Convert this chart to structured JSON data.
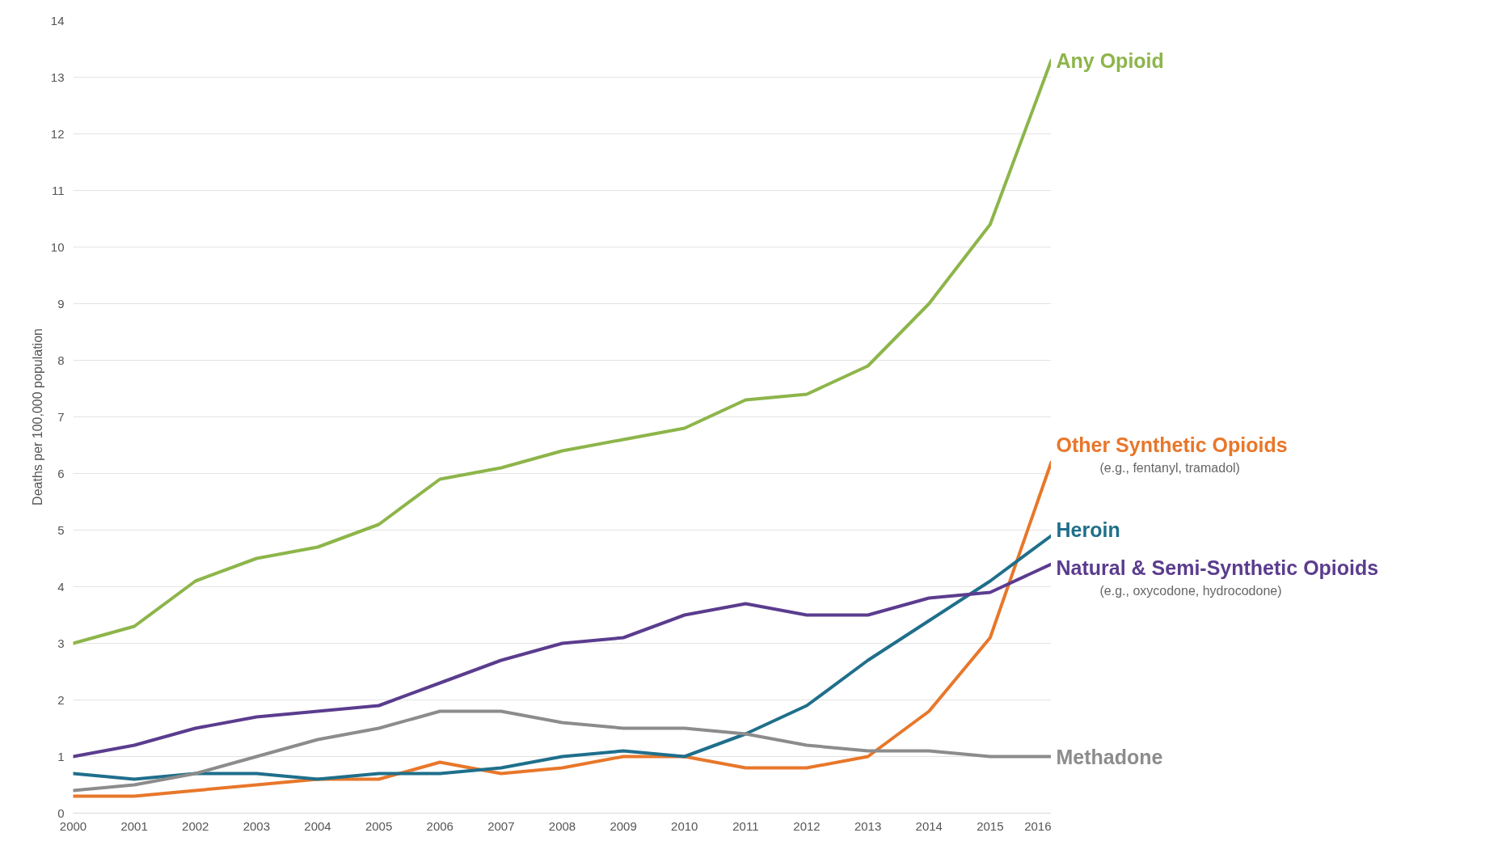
{
  "chart_data": {
    "type": "line",
    "ylabel": "Deaths per 100,000 population",
    "x": [
      2000,
      2001,
      2002,
      2003,
      2004,
      2005,
      2006,
      2007,
      2008,
      2009,
      2010,
      2011,
      2012,
      2013,
      2014,
      2015,
      2016
    ],
    "xlim": [
      2000,
      2016
    ],
    "xticks": [
      2000,
      2001,
      2002,
      2003,
      2004,
      2005,
      2006,
      2007,
      2008,
      2009,
      2010,
      2011,
      2012,
      2013,
      2014,
      2015,
      2016
    ],
    "ylim": [
      0,
      14
    ],
    "yticks": [
      0,
      1,
      2,
      3,
      4,
      5,
      6,
      7,
      8,
      9,
      10,
      11,
      12,
      13,
      14
    ],
    "grid": "y",
    "marker": "none",
    "line_style": "solid",
    "series": [
      {
        "name": "Any Opioid",
        "color": "#8db54a",
        "values": [
          3.0,
          3.3,
          4.1,
          4.5,
          4.7,
          5.1,
          5.9,
          6.1,
          6.4,
          6.6,
          6.8,
          7.3,
          7.4,
          7.9,
          9.0,
          10.4,
          13.3
        ]
      },
      {
        "name": "Other Synthetic Opioids",
        "color": "#e8772a",
        "values": [
          0.3,
          0.3,
          0.4,
          0.5,
          0.6,
          0.6,
          0.9,
          0.7,
          0.8,
          1.0,
          1.0,
          0.8,
          0.8,
          1.0,
          1.8,
          3.1,
          6.2
        ]
      },
      {
        "name": "Heroin",
        "color": "#1f6f8b",
        "values": [
          0.7,
          0.6,
          0.7,
          0.7,
          0.6,
          0.7,
          0.7,
          0.8,
          1.0,
          1.1,
          1.0,
          1.4,
          1.9,
          2.7,
          3.4,
          4.1,
          4.9
        ]
      },
      {
        "name": "Natural & Semi-Synthetic Opioids",
        "color": "#5b3c8e",
        "values": [
          1.0,
          1.2,
          1.5,
          1.7,
          1.8,
          1.9,
          2.3,
          2.7,
          3.0,
          3.1,
          3.5,
          3.7,
          3.5,
          3.5,
          3.8,
          3.9,
          4.4
        ]
      },
      {
        "name": "Methadone",
        "color": "#8c8c8c",
        "values": [
          0.4,
          0.5,
          0.7,
          1.0,
          1.3,
          1.5,
          1.8,
          1.8,
          1.6,
          1.5,
          1.5,
          1.4,
          1.2,
          1.1,
          1.1,
          1.0,
          1.0
        ]
      }
    ],
    "annotations": [
      "(e.g., fentanyl, tramadol)",
      "(e.g., oxycodone, hydrocodone)"
    ]
  }
}
